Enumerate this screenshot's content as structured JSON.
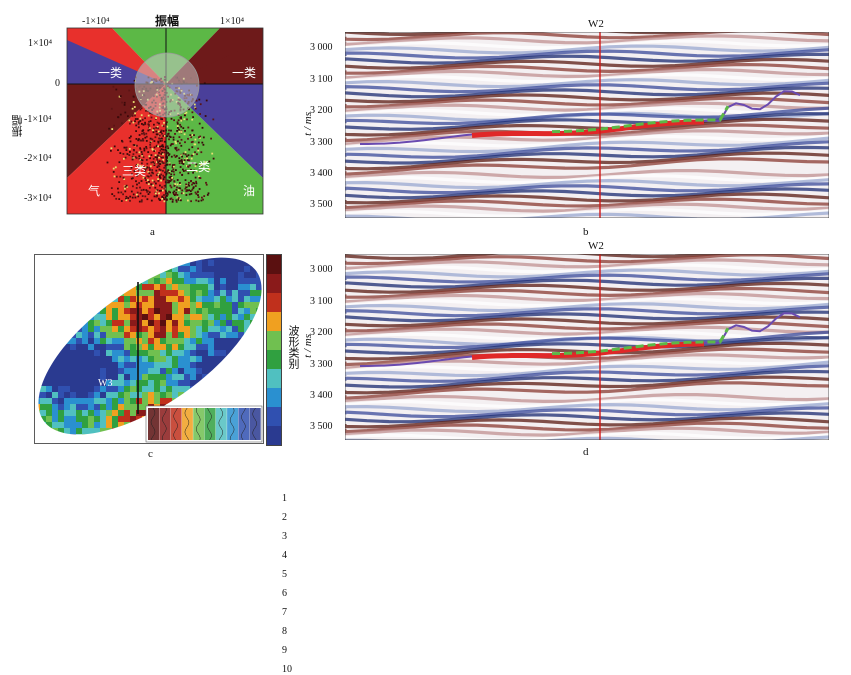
{
  "panels": {
    "a": {
      "caption": "a",
      "title": "振幅",
      "ylabel": "振幅",
      "xticks": [
        "-1×10⁴",
        "1×10⁴"
      ],
      "yticks": [
        "1×10⁴",
        "0",
        "-1×10⁴",
        "-2×10⁴",
        "-3×10⁴"
      ],
      "regions": [
        "一类",
        "一类",
        "三类",
        "二类",
        "气",
        "油"
      ],
      "colors": {
        "red": "#e8302c",
        "green": "#5cb846",
        "purple": "#4a3f9a",
        "maroon": "#6e1a1a"
      }
    },
    "b": {
      "caption": "b",
      "well": "W2",
      "ylabel": "t / ms",
      "yticks": [
        "3 000",
        "3 100",
        "3 200",
        "3 300",
        "3 400",
        "3 500"
      ]
    },
    "c": {
      "caption": "c",
      "well": "W3",
      "legend_title": "波形类别",
      "legend_values": [
        "1",
        "2",
        "3",
        "4",
        "5",
        "6",
        "7",
        "8",
        "9",
        "10"
      ],
      "legend_colors": [
        "#5a1010",
        "#8a1a1a",
        "#c0301c",
        "#f0a020",
        "#70c050",
        "#30a040",
        "#50c0c0",
        "#2a90d0",
        "#3050b0",
        "#2a3a90"
      ]
    },
    "d": {
      "caption": "d",
      "well": "W2",
      "ylabel": "t / ms",
      "yticks": [
        "3 000",
        "3 100",
        "3 200",
        "3 300",
        "3 400",
        "3 500"
      ]
    }
  }
}
